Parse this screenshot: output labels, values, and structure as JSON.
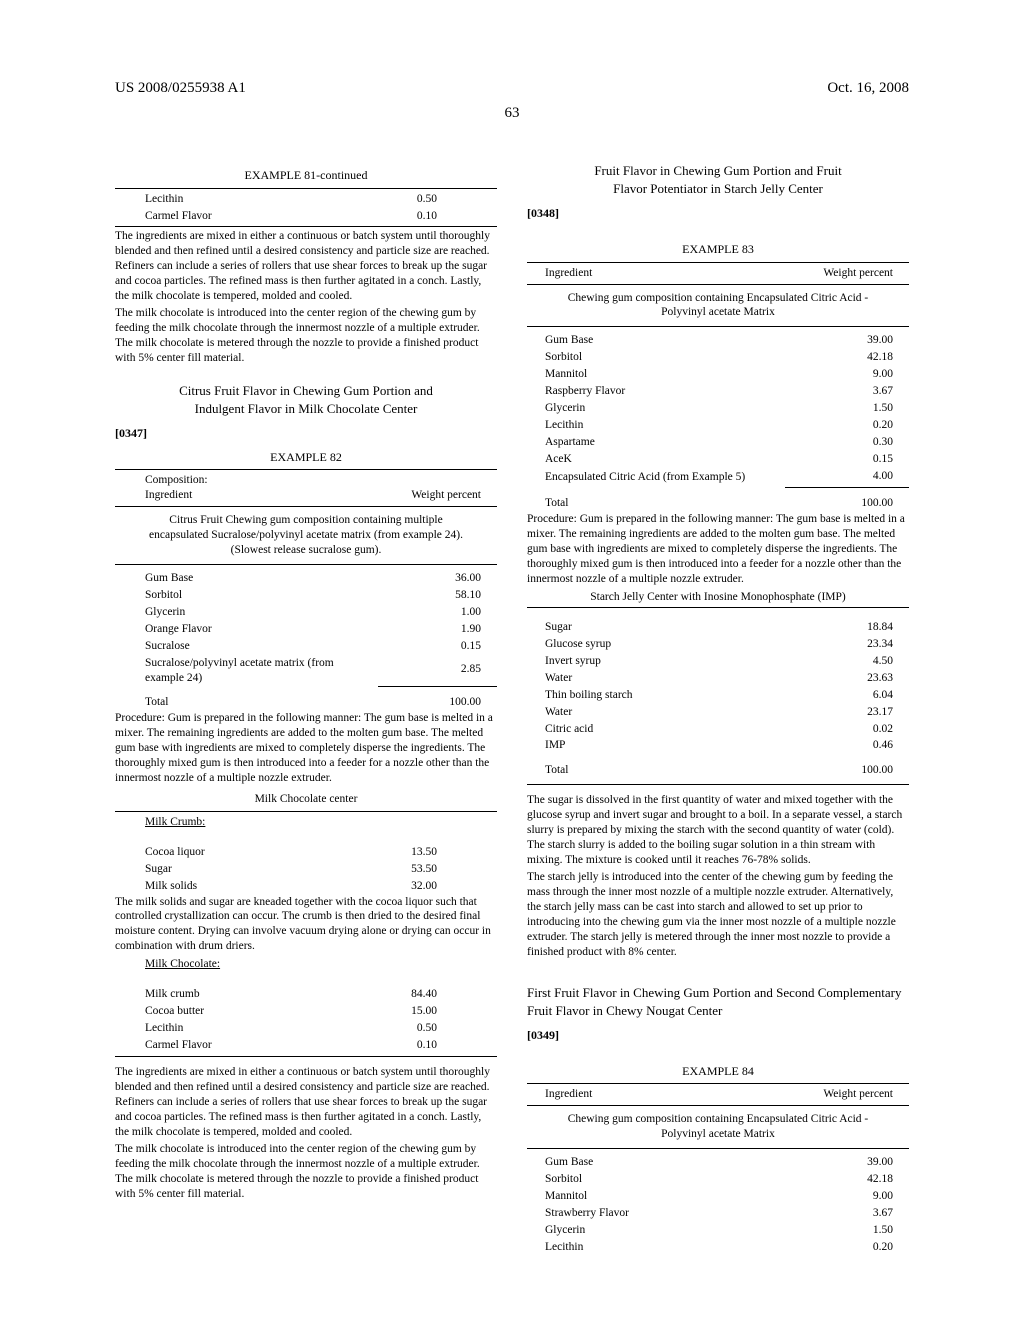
{
  "header": {
    "left": "US 2008/0255938 A1",
    "right": "Oct. 16, 2008",
    "page": "63"
  },
  "c1": {
    "ex81": {
      "title": "EXAMPLE 81-continued",
      "rows": [
        [
          "Lecithin",
          "0.50"
        ],
        [
          "Carmel Flavor",
          "0.10"
        ]
      ],
      "proc1": "The ingredients are mixed in either a continuous or batch system until thoroughly blended and then refined until a desired consistency and particle size are reached. Refiners can include a series of rollers that use shear forces to break up the sugar and cocoa particles. The refined mass is then further agitated in a conch. Lastly, the milk chocolate is tempered, molded and cooled.",
      "proc2": "The milk chocolate is introduced into the center region of the chewing gum by feeding the milk chocolate through the innermost nozzle of a multiple extruder. The milk chocolate is metered through the nozzle to provide a finished product with 5% center fill material."
    },
    "secA": {
      "title1": "Citrus Fruit Flavor in Chewing Gum Portion and",
      "title2": "Indulgent Flavor in Milk Chocolate Center",
      "para": "[0347]"
    },
    "ex82": {
      "title": "EXAMPLE 82",
      "head_l": "Composition:\nIngredient",
      "head_r": "Weight percent",
      "sub": "Citrus Fruit Chewing gum composition containing multiple encapsulated Sucralose/polyvinyl acetate matrix (from example 24). (Slowest release sucralose gum).",
      "rows": [
        [
          "Gum Base",
          "36.00"
        ],
        [
          "Sorbitol",
          "58.10"
        ],
        [
          "Glycerin",
          "1.00"
        ],
        [
          "Orange Flavor",
          "1.90"
        ],
        [
          "Sucralose",
          "0.15"
        ],
        [
          "Sucralose/polyvinyl acetate matrix (from example 24)",
          "2.85"
        ]
      ],
      "total_l": "Total",
      "total_r": "100.00",
      "proc": "Procedure: Gum is prepared in the following manner: The gum base is melted in a mixer. The remaining ingredients are added to the molten gum base. The melted gum base with ingredients are mixed to completely disperse the ingredients. The thoroughly mixed gum is then introduced into a feeder for a nozzle other than the innermost nozzle of a multiple nozzle extruder.",
      "sub2": "Milk Chocolate center",
      "crumb_label": "Milk Crumb:",
      "crumb_rows": [
        [
          "Cocoa liquor",
          "13.50"
        ],
        [
          "Sugar",
          "53.50"
        ],
        [
          "Milk solids",
          "32.00"
        ]
      ],
      "proc_crumb": "The milk solids and sugar are kneaded together with the cocoa liquor such that controlled crystallization can occur. The crumb is then dried to the desired final moisture content. Drying can involve vacuum drying alone or drying can occur in combination with drum driers.",
      "choc_label": "Milk Chocolate:",
      "choc_rows": [
        [
          "Milk crumb",
          "84.40"
        ],
        [
          "Cocoa butter",
          "15.00"
        ],
        [
          "Lecithin",
          "0.50"
        ],
        [
          "Carmel Flavor",
          "0.10"
        ]
      ],
      "proc_final1": "The ingredients are mixed in either a continuous or batch system until thoroughly blended and then refined until a desired consistency and particle size are reached. Refiners can include a series of rollers that use shear forces to break up the sugar and cocoa particles. The refined mass is then further agitated in a conch. Lastly, the milk chocolate is tempered, molded and cooled.",
      "proc_final2": "The milk chocolate is introduced into the center region of the chewing gum by feeding the milk chocolate through the innermost nozzle of a multiple extruder. The milk chocolate is metered through the nozzle to provide a finished product with 5% center fill material."
    }
  },
  "c2": {
    "secB": {
      "title1": "Fruit Flavor in Chewing Gum Portion and Fruit",
      "title2": "Flavor Potentiator in Starch Jelly Center",
      "para": "[0348]"
    },
    "ex83": {
      "title": "EXAMPLE 83",
      "head_l": "Ingredient",
      "head_r": "Weight percent",
      "sub": "Chewing gum composition containing Encapsulated Citric Acid - Polyvinyl acetate Matrix",
      "rows": [
        [
          "Gum Base",
          "39.00"
        ],
        [
          "Sorbitol",
          "42.18"
        ],
        [
          "Mannitol",
          "9.00"
        ],
        [
          "Raspberry Flavor",
          "3.67"
        ],
        [
          "Glycerin",
          "1.50"
        ],
        [
          "Lecithin",
          "0.20"
        ],
        [
          "Aspartame",
          "0.30"
        ],
        [
          "AceK",
          "0.15"
        ],
        [
          "Encapsulated Citric Acid (from Example 5)",
          "4.00"
        ]
      ],
      "total_l": "Total",
      "total_r": "100.00",
      "proc": "Procedure: Gum is prepared in the following manner: The gum base is melted in a mixer. The remaining ingredients are added to the molten gum base. The melted gum base with ingredients are mixed to completely disperse the ingredients. The thoroughly mixed gum is then introduced into a feeder for a nozzle other than the innermost nozzle of a multiple nozzle extruder.",
      "sub2": "Starch Jelly Center with Inosine Monophosphate (IMP)",
      "rows2": [
        [
          "Sugar",
          "18.84"
        ],
        [
          "Glucose syrup",
          "23.34"
        ],
        [
          "Invert syrup",
          "4.50"
        ],
        [
          "Water",
          "23.63"
        ],
        [
          "Thin boiling starch",
          "6.04"
        ],
        [
          "Water",
          "23.17"
        ],
        [
          "Citric acid",
          "0.02"
        ],
        [
          "IMP",
          "0.46"
        ]
      ],
      "total2_l": "Total",
      "total2_r": "100.00",
      "proc2a": "The sugar is dissolved in the first quantity of water and mixed together with the glucose syrup and invert sugar and brought to a boil. In a separate vessel, a starch slurry is prepared by mixing the starch with the second quantity of water (cold). The starch slurry is added to the boiling sugar solution in a thin stream with mixing. The mixture is cooked until it reaches 76-78% solids.",
      "proc2b": "The starch jelly is introduced into the center of the chewing gum by feeding the mass through the inner most nozzle of a multiple nozzle extruder. Alternatively, the starch jelly mass can be cast into starch and allowed to set up prior to introducing into the chewing gum via the inner most nozzle of a multiple nozzle extruder. The starch jelly is metered through the inner most nozzle to provide a finished product with 8% center."
    },
    "secC": {
      "title": "First Fruit Flavor in Chewing Gum Portion and Second Complementary Fruit Flavor in Chewy Nougat Center",
      "para": "[0349]"
    },
    "ex84": {
      "title": "EXAMPLE 84",
      "head_l": "Ingredient",
      "head_r": "Weight percent",
      "sub": "Chewing gum composition containing Encapsulated Citric Acid - Polyvinyl acetate Matrix",
      "rows": [
        [
          "Gum Base",
          "39.00"
        ],
        [
          "Sorbitol",
          "42.18"
        ],
        [
          "Mannitol",
          "9.00"
        ],
        [
          "Strawberry Flavor",
          "3.67"
        ],
        [
          "Glycerin",
          "1.50"
        ],
        [
          "Lecithin",
          "0.20"
        ]
      ]
    }
  }
}
